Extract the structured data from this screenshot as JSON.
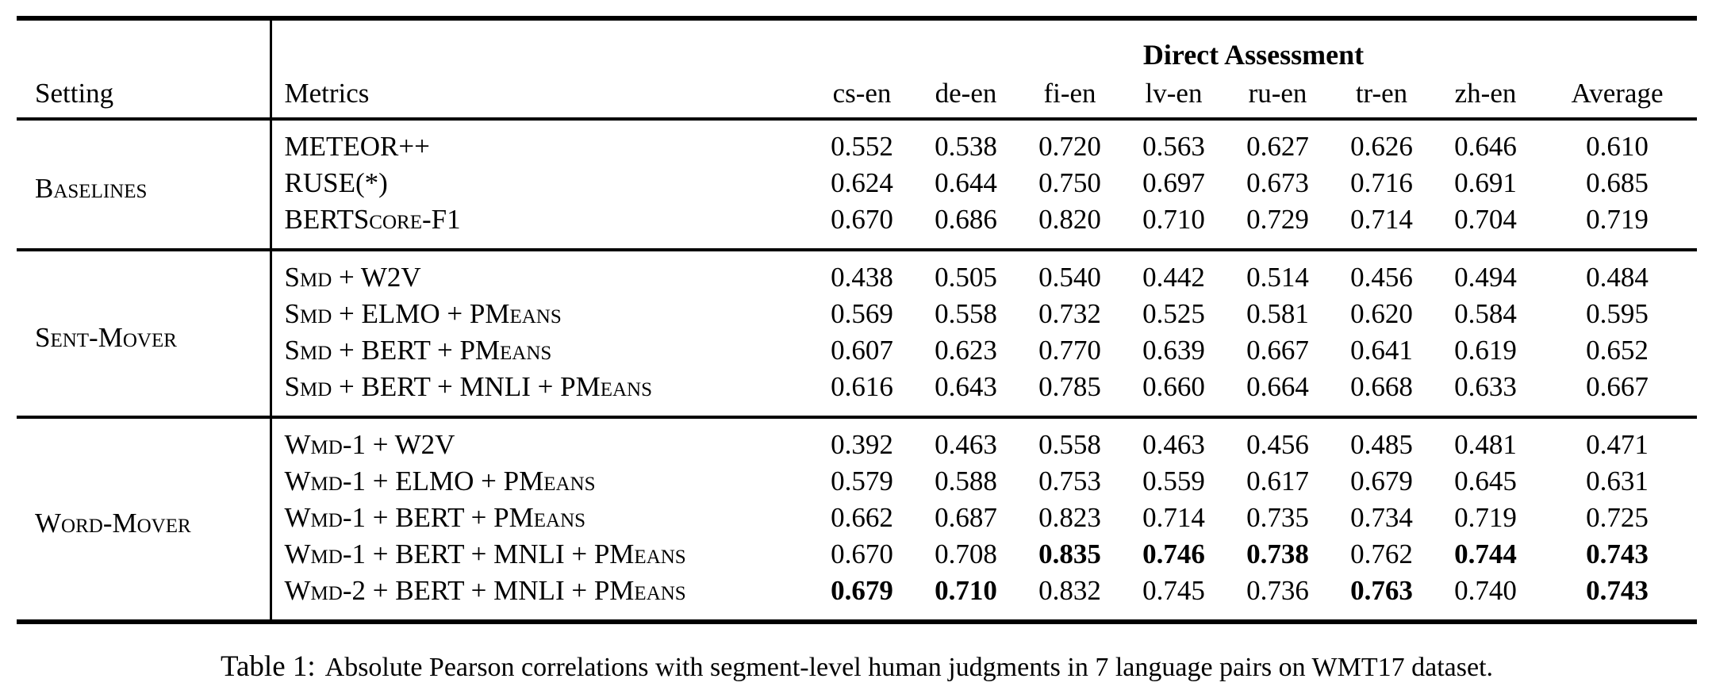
{
  "table": {
    "header": {
      "setting": "Setting",
      "metrics": "Metrics",
      "group": "Direct Assessment",
      "columns": [
        "cs-en",
        "de-en",
        "fi-en",
        "lv-en",
        "ru-en",
        "tr-en",
        "zh-en",
        "Average"
      ]
    },
    "sections": [
      {
        "setting": "Baselines",
        "rows": [
          {
            "metric": "METEOR++",
            "values": [
              "0.552",
              "0.538",
              "0.720",
              "0.563",
              "0.627",
              "0.626",
              "0.646",
              "0.610"
            ],
            "bold": []
          },
          {
            "metric": "RUSE(*)",
            "values": [
              "0.624",
              "0.644",
              "0.750",
              "0.697",
              "0.673",
              "0.716",
              "0.691",
              "0.685"
            ],
            "bold": []
          },
          {
            "metric": "BERTScore-F1",
            "values": [
              "0.670",
              "0.686",
              "0.820",
              "0.710",
              "0.729",
              "0.714",
              "0.704",
              "0.719"
            ],
            "bold": []
          }
        ]
      },
      {
        "setting": "Sent-Mover",
        "rows": [
          {
            "metric": "Smd + W2V",
            "values": [
              "0.438",
              "0.505",
              "0.540",
              "0.442",
              "0.514",
              "0.456",
              "0.494",
              "0.484"
            ],
            "bold": []
          },
          {
            "metric": "Smd + ELMO + PMeans",
            "values": [
              "0.569",
              "0.558",
              "0.732",
              "0.525",
              "0.581",
              "0.620",
              "0.584",
              "0.595"
            ],
            "bold": []
          },
          {
            "metric": "Smd + BERT + PMeans",
            "values": [
              "0.607",
              "0.623",
              "0.770",
              "0.639",
              "0.667",
              "0.641",
              "0.619",
              "0.652"
            ],
            "bold": []
          },
          {
            "metric": "Smd + BERT + MNLI + PMeans",
            "values": [
              "0.616",
              "0.643",
              "0.785",
              "0.660",
              "0.664",
              "0.668",
              "0.633",
              "0.667"
            ],
            "bold": []
          }
        ]
      },
      {
        "setting": "Word-Mover",
        "rows": [
          {
            "metric": "Wmd-1 + W2V",
            "values": [
              "0.392",
              "0.463",
              "0.558",
              "0.463",
              "0.456",
              "0.485",
              "0.481",
              "0.471"
            ],
            "bold": []
          },
          {
            "metric": "Wmd-1 + ELMO + PMeans",
            "values": [
              "0.579",
              "0.588",
              "0.753",
              "0.559",
              "0.617",
              "0.679",
              "0.645",
              "0.631"
            ],
            "bold": []
          },
          {
            "metric": "Wmd-1 + BERT + PMeans",
            "values": [
              "0.662",
              "0.687",
              "0.823",
              "0.714",
              "0.735",
              "0.734",
              "0.719",
              "0.725"
            ],
            "bold": []
          },
          {
            "metric": "Wmd-1 + BERT + MNLI + PMeans",
            "values": [
              "0.670",
              "0.708",
              "0.835",
              "0.746",
              "0.738",
              "0.762",
              "0.744",
              "0.743"
            ],
            "bold": [
              2,
              3,
              4,
              6,
              7
            ]
          },
          {
            "metric": "Wmd-2 + BERT + MNLI + PMeans",
            "values": [
              "0.679",
              "0.710",
              "0.832",
              "0.745",
              "0.736",
              "0.763",
              "0.740",
              "0.743"
            ],
            "bold": [
              0,
              1,
              5,
              7
            ]
          }
        ]
      }
    ]
  },
  "caption": {
    "label": "Table 1:",
    "text": "Absolute Pearson correlations with segment-level human judgments in 7 language pairs on WMT17 dataset."
  }
}
